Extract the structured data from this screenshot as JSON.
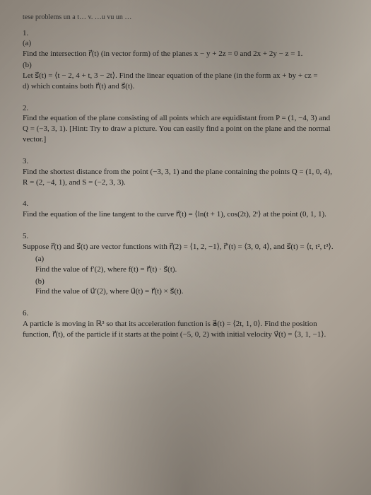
{
  "header": {
    "fragment": "tese problems un a t… v. …u vu un …"
  },
  "problems": [
    {
      "number": "1.",
      "parts": [
        {
          "label": "(a)",
          "text": "Find the intersection r⃗(t) (in vector form) of the planes x − y + 2z = 0 and 2x + 2y − z = 1."
        },
        {
          "label": "(b)",
          "text": "Let s⃗(t) = ⟨t − 2, 4 + t, 3 − 2t⟩. Find the linear equation of the plane (in the form ax + by + cz = d) which contains both r⃗(t) and s⃗(t)."
        }
      ]
    },
    {
      "number": "2.",
      "text": "Find the equation of the plane consisting of all points which are equidistant from P = (1, −4, 3) and Q = (−3, 3, 1). [Hint: Try to draw a picture. You can easily find a point on the plane and the normal vector.]"
    },
    {
      "number": "3.",
      "text": "Find the shortest distance from the point (−3, 3, 1) and the plane containing the points Q = (1, 0, 4), R = (2, −4, 1), and S = (−2, 3, 3)."
    },
    {
      "number": "4.",
      "text": "Find the equation of the line tangent to the curve r⃗(t) = ⟨ln(t + 1), cos(2t), 2ᵗ⟩ at the point (0, 1, 1)."
    },
    {
      "number": "5.",
      "intro": "Suppose r⃗(t) and s⃗(t) are vector functions with r⃗(2) = ⟨1, 2, −1⟩, r⃗′(t) = ⟨3, 0, 4⟩, and s⃗(t) = ⟨t, t², t³⟩.",
      "parts": [
        {
          "label": "(a)",
          "text": "Find the value of f′(2), where f(t) = r⃗(t) · s⃗(t)."
        },
        {
          "label": "(b)",
          "text": "Find the value of u⃗′(2), where u⃗(t) = r⃗(t) × s⃗(t)."
        }
      ]
    },
    {
      "number": "6.",
      "text": "A particle is moving in ℝ³ so that its acceleration function is a⃗(t) = ⟨2t, 1, 0⟩. Find the position function, r⃗(t), of the particle if it starts at the point (−5, 0, 2) with initial velocity v⃗(t) = ⟨3, 1, −1⟩."
    }
  ]
}
